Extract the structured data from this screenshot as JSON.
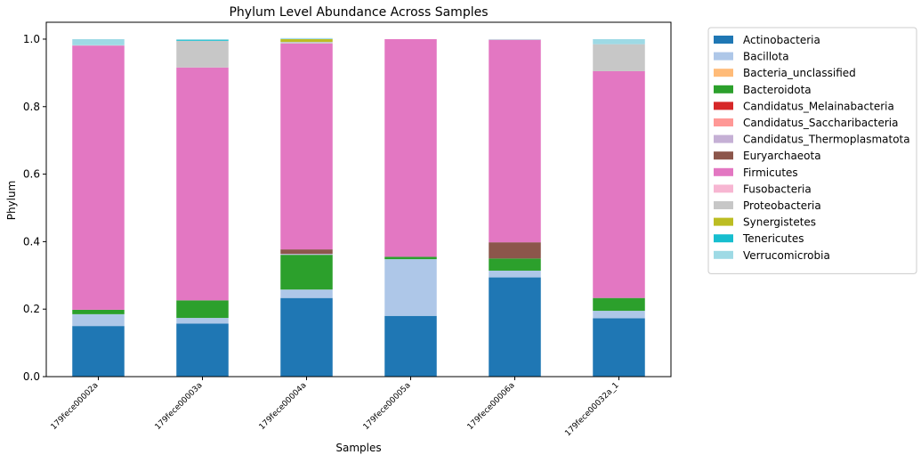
{
  "chart_data": {
    "type": "bar",
    "stacked": true,
    "title": "Phylum Level Abundance Across Samples",
    "xlabel": "Samples",
    "ylabel": "Phylum",
    "ylim": [
      0,
      1.05
    ],
    "yticks": [
      0.0,
      0.2,
      0.4,
      0.6,
      0.8,
      1.0
    ],
    "ytick_labels": [
      "0.0",
      "0.2",
      "0.4",
      "0.6",
      "0.8",
      "1.0"
    ],
    "categories": [
      "179fece00002a",
      "179fece00003a",
      "179fece00004a",
      "179fece00005a",
      "179fece00006a",
      "179fece00032a_1"
    ],
    "grid": false,
    "legend_position": "outside-right",
    "series": [
      {
        "name": "Actinobacteria",
        "color": "#1f77b4",
        "values": [
          0.15,
          0.157,
          0.233,
          0.18,
          0.294,
          0.173
        ]
      },
      {
        "name": "Bacillota",
        "color": "#aec7e8",
        "values": [
          0.035,
          0.017,
          0.025,
          0.168,
          0.02,
          0.022
        ]
      },
      {
        "name": "Bacteria_unclassified",
        "color": "#ffbb78",
        "values": [
          0.0,
          0.0,
          0.0,
          0.0,
          0.0,
          0.0
        ]
      },
      {
        "name": "Bacteroidota",
        "color": "#2ca02c",
        "values": [
          0.013,
          0.052,
          0.103,
          0.007,
          0.036,
          0.038
        ]
      },
      {
        "name": "Candidatus_Melainabacteria",
        "color": "#d62728",
        "values": [
          0.0,
          0.0,
          0.0,
          0.0,
          0.0,
          0.0
        ]
      },
      {
        "name": "Candidatus_Saccharibacteria",
        "color": "#ff9896",
        "values": [
          0.0,
          0.0,
          0.0,
          0.0,
          0.0,
          0.0
        ]
      },
      {
        "name": "Candidatus_Thermoplasmatota",
        "color": "#c5b0d5",
        "values": [
          0.0,
          0.0,
          0.003,
          0.0,
          0.0,
          0.0
        ]
      },
      {
        "name": "Euryarchaeota",
        "color": "#8c564b",
        "values": [
          0.0,
          0.0,
          0.013,
          0.0,
          0.048,
          0.0
        ]
      },
      {
        "name": "Firmicutes",
        "color": "#e377c2",
        "values": [
          0.783,
          0.69,
          0.61,
          0.645,
          0.6,
          0.672
        ]
      },
      {
        "name": "Fusobacteria",
        "color": "#f7b6d2",
        "values": [
          0.0,
          0.0,
          0.0,
          0.0,
          0.0,
          0.0
        ]
      },
      {
        "name": "Proteobacteria",
        "color": "#c7c7c7",
        "values": [
          0.001,
          0.079,
          0.005,
          0.0,
          0.001,
          0.08
        ]
      },
      {
        "name": "Synergistetes",
        "color": "#bcbd22",
        "values": [
          0.0,
          0.0,
          0.008,
          0.0,
          0.0,
          0.0
        ]
      },
      {
        "name": "Tenericutes",
        "color": "#17becf",
        "values": [
          0.0,
          0.003,
          0.0,
          0.0,
          0.0,
          0.0
        ]
      },
      {
        "name": "Verrucomicrobia",
        "color": "#9edae5",
        "values": [
          0.018,
          0.002,
          0.003,
          0.0,
          0.001,
          0.015
        ]
      }
    ]
  }
}
